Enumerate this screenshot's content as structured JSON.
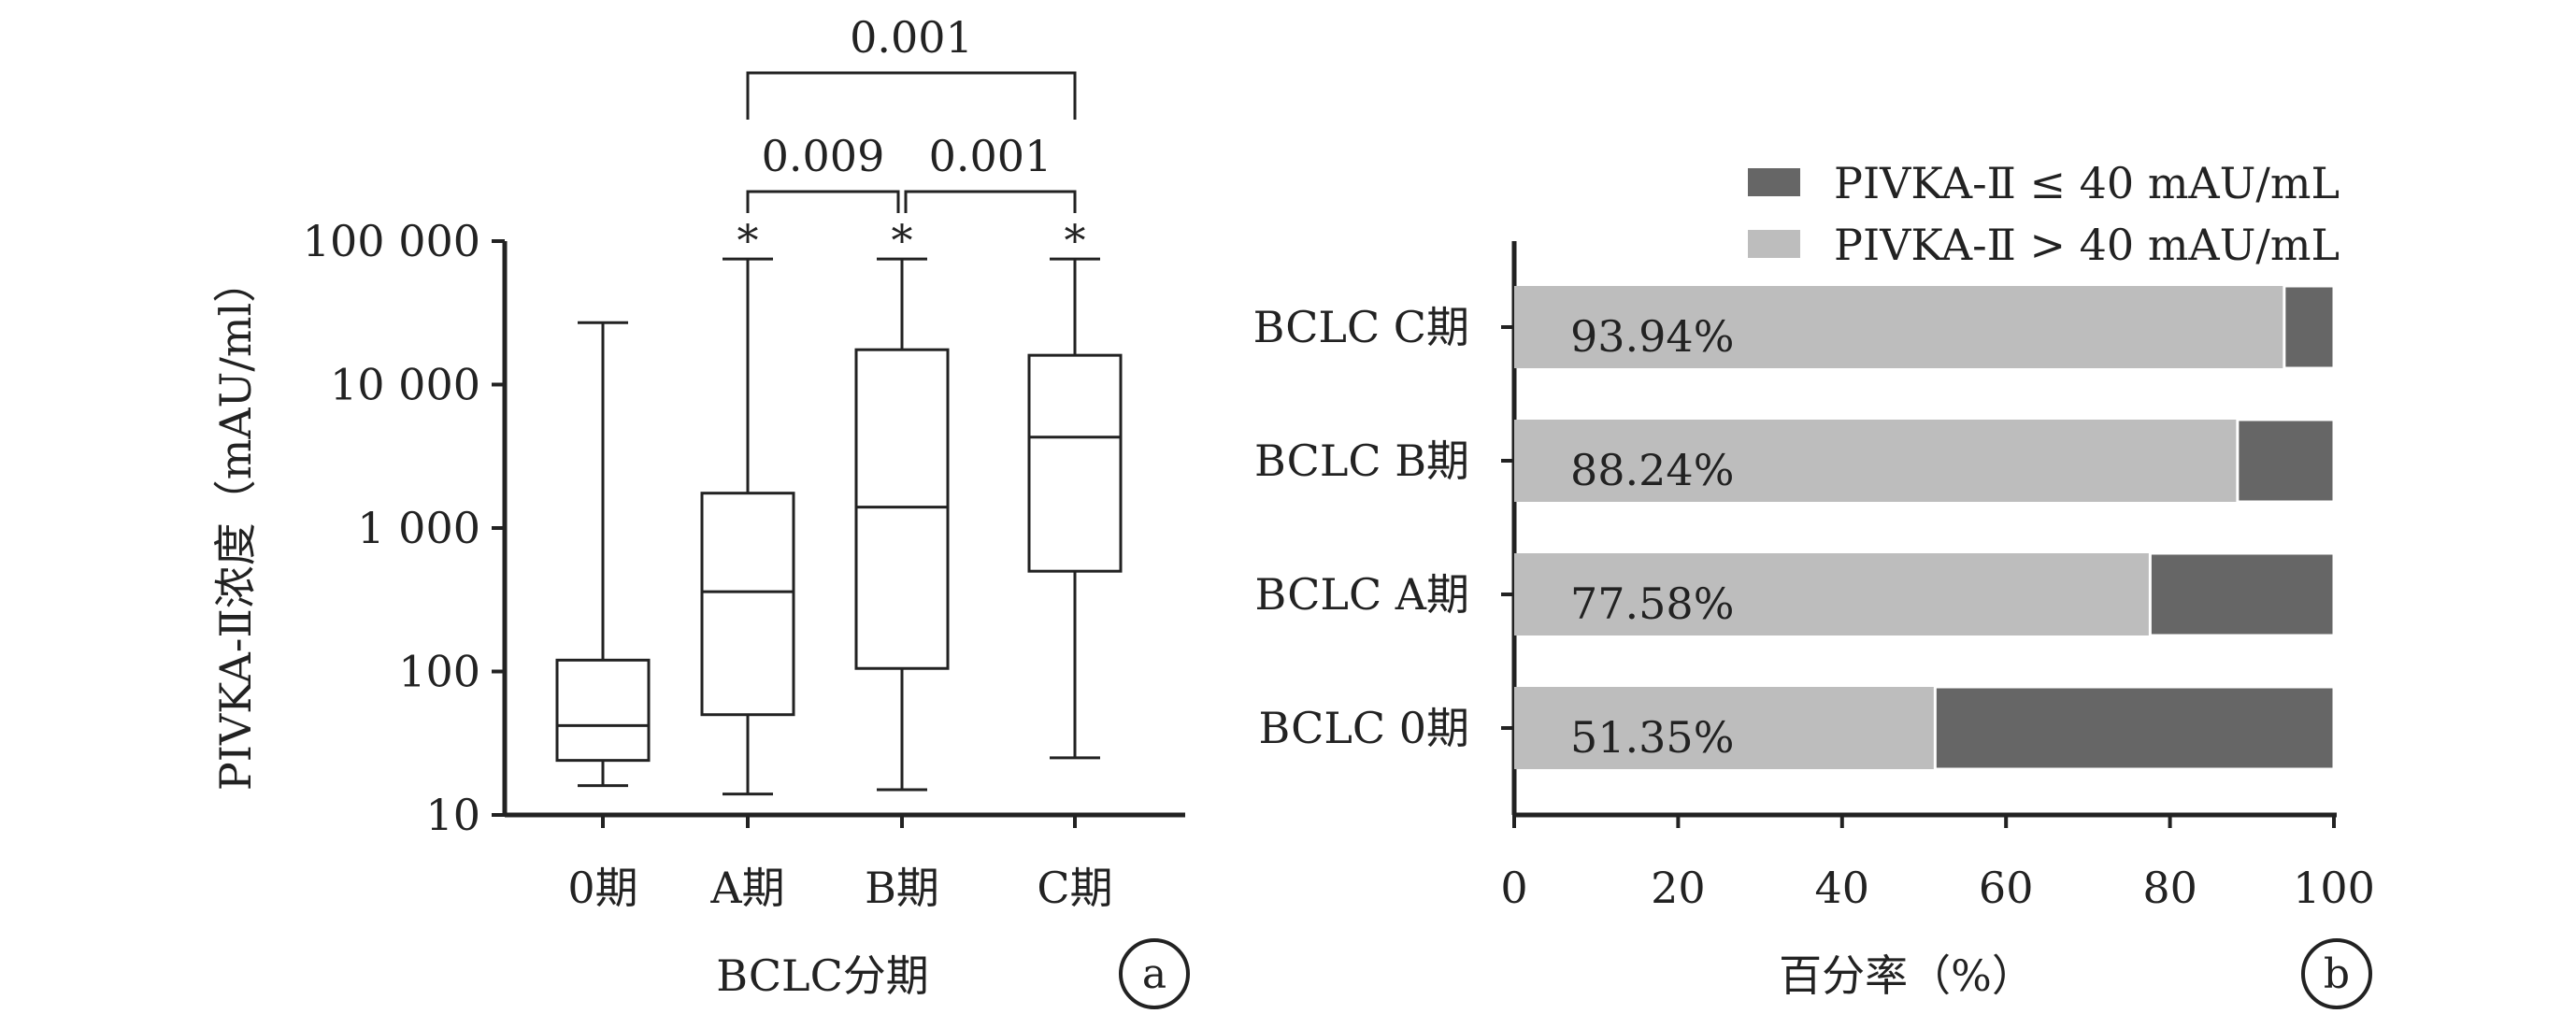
{
  "chart_data": [
    {
      "panel": "a",
      "type": "box",
      "xlabel": "BCLC分期",
      "ylabel": "PIVKA-Ⅱ浓度（mAU/ml）",
      "yscale": "log",
      "ylim": [
        10,
        100000
      ],
      "yticks": [
        {
          "value": 10,
          "label": "10"
        },
        {
          "value": 100,
          "label": "100"
        },
        {
          "value": 1000,
          "label": "1 000"
        },
        {
          "value": 10000,
          "label": "10 000"
        },
        {
          "value": 100000,
          "label": "100 000"
        }
      ],
      "categories": [
        "0期",
        "A期",
        "B期",
        "C期"
      ],
      "boxes": [
        {
          "min": 16,
          "q1": 24,
          "median": 42,
          "q3": 120,
          "max": 27000
        },
        {
          "min": 14,
          "q1": 50,
          "median": 360,
          "q3": 1750,
          "max": 75000
        },
        {
          "min": 15,
          "q1": 105,
          "median": 1400,
          "q3": 17500,
          "max": 75000
        },
        {
          "min": 25,
          "q1": 500,
          "median": 4300,
          "q3": 16000,
          "max": 75000
        }
      ],
      "markers": [
        {
          "category_index": 1,
          "text": "*"
        },
        {
          "category_index": 2,
          "text": "*"
        },
        {
          "category_index": 3,
          "text": "*"
        }
      ],
      "comparisons": [
        {
          "from": 1,
          "to": 2,
          "label": "0.009"
        },
        {
          "from": 2,
          "to": 3,
          "label": "0.001"
        },
        {
          "from": 1,
          "to": 3,
          "label": "0.001"
        }
      ],
      "grid": false
    },
    {
      "panel": "b",
      "type": "bar",
      "orientation": "horizontal",
      "stacked": true,
      "xlabel": "百分率（%）",
      "xlim": [
        0,
        100
      ],
      "xticks": [
        "0",
        "20",
        "40",
        "60",
        "80",
        "100"
      ],
      "categories": [
        "BCLC C期",
        "BCLC B期",
        "BCLC A期",
        "BCLC 0期"
      ],
      "series": [
        {
          "name": "PIVKA-Ⅱ > 40 mAU/mL",
          "color": "#bdbdbd",
          "values": [
            93.94,
            88.24,
            77.58,
            51.35
          ],
          "labels": [
            "93.94%",
            "88.24%",
            "77.58%",
            "51.35%"
          ]
        },
        {
          "name": "PIVKA-Ⅱ ≤ 40 mAU/mL",
          "color": "#666666",
          "values": [
            6.06,
            11.76,
            22.42,
            48.65
          ]
        }
      ],
      "legend": {
        "placement": "top-right",
        "entries": [
          "PIVKA-Ⅱ ≤ 40 mAU/mL",
          "PIVKA-Ⅱ > 40 mAU/mL"
        ]
      },
      "grid": false
    }
  ]
}
